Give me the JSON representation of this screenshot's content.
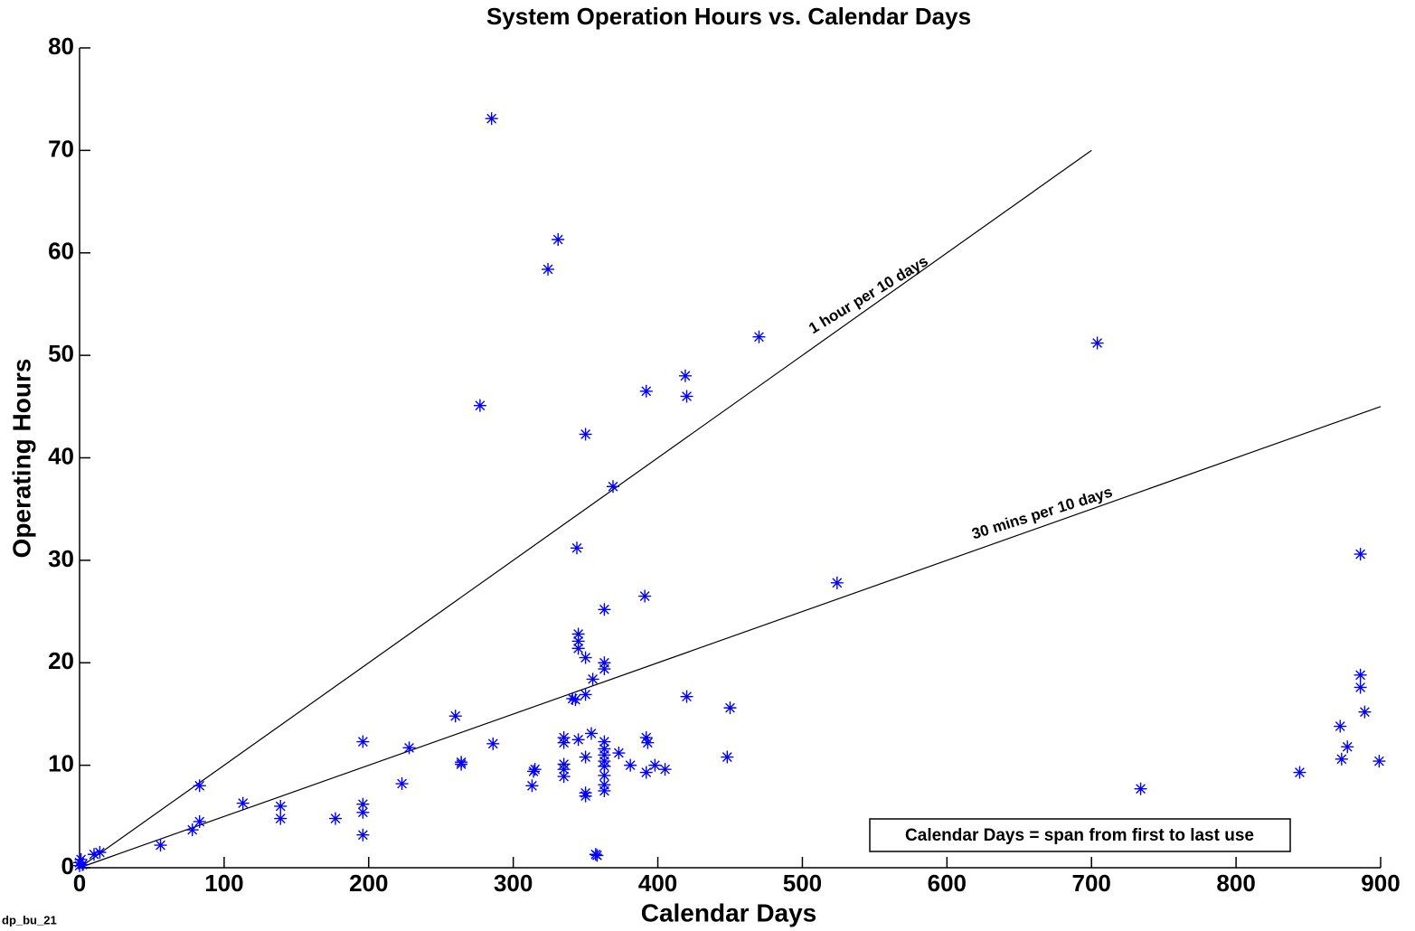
{
  "chart_data": {
    "type": "scatter",
    "title": "System Operation Hours vs. Calendar Days",
    "xlabel": "Calendar Days",
    "ylabel": "Operating Hours",
    "figure_id": "dp_bu_21",
    "note": "Calendar Days = span from first to last use",
    "color": "#0000ff",
    "xlim": [
      0,
      900
    ],
    "xticks": [
      0,
      100,
      200,
      300,
      400,
      500,
      600,
      700,
      800,
      900
    ],
    "ylim": [
      0,
      80
    ],
    "yticks": [
      0,
      10,
      20,
      30,
      40,
      50,
      60,
      70,
      80
    ],
    "grid": false,
    "x": [
      0,
      0,
      1,
      2,
      10,
      14,
      56,
      78,
      83,
      83,
      113,
      139,
      139,
      177,
      196,
      196,
      196,
      196,
      223,
      228,
      260,
      264,
      264,
      277,
      285,
      286,
      313,
      314,
      315,
      324,
      331,
      335,
      335,
      335,
      335,
      335,
      341,
      343,
      344,
      345,
      345,
      345,
      345,
      350,
      350,
      350,
      350,
      350,
      350,
      354,
      355,
      357,
      358,
      363,
      363,
      363,
      363,
      363,
      363,
      363,
      363,
      363,
      363,
      363,
      369,
      373,
      381,
      391,
      392,
      392,
      393,
      392,
      398,
      405,
      419,
      420,
      420,
      448,
      450,
      470,
      524,
      704,
      734,
      844,
      872,
      873,
      877,
      886,
      886,
      886,
      889,
      899
    ],
    "values": [
      0.2,
      0.5,
      0.8,
      0.3,
      1.3,
      1.5,
      2.2,
      3.7,
      8.0,
      4.5,
      6.3,
      6.0,
      4.8,
      4.8,
      12.3,
      6.2,
      5.4,
      3.2,
      8.2,
      11.7,
      14.8,
      10.3,
      10.1,
      45.1,
      73.1,
      12.1,
      8.0,
      9.4,
      9.6,
      58.4,
      61.3,
      12.7,
      12.2,
      10.1,
      9.6,
      8.9,
      16.5,
      16.4,
      31.2,
      22.8,
      22.1,
      21.4,
      12.5,
      42.3,
      20.5,
      16.9,
      10.8,
      7.3,
      7.0,
      13.1,
      18.4,
      1.3,
      1.2,
      25.2,
      20.0,
      19.4,
      12.3,
      11.6,
      11.0,
      10.4,
      9.9,
      9.0,
      8.1,
      7.5,
      37.2,
      11.2,
      10.0,
      26.5,
      46.5,
      12.7,
      12.2,
      9.3,
      10.0,
      9.6,
      48.0,
      46.0,
      16.7,
      10.8,
      15.6,
      51.8,
      27.8,
      51.2,
      7.7,
      9.3,
      13.8,
      10.6,
      11.8,
      30.6,
      18.8,
      17.6,
      15.2,
      10.4
    ],
    "lines": [
      {
        "label": "1 hour per 10 days",
        "x": [
          0,
          700
        ],
        "values": [
          0,
          70
        ]
      },
      {
        "label": "30 mins per 10 days",
        "x": [
          0,
          900
        ],
        "values": [
          0,
          45
        ]
      }
    ]
  }
}
